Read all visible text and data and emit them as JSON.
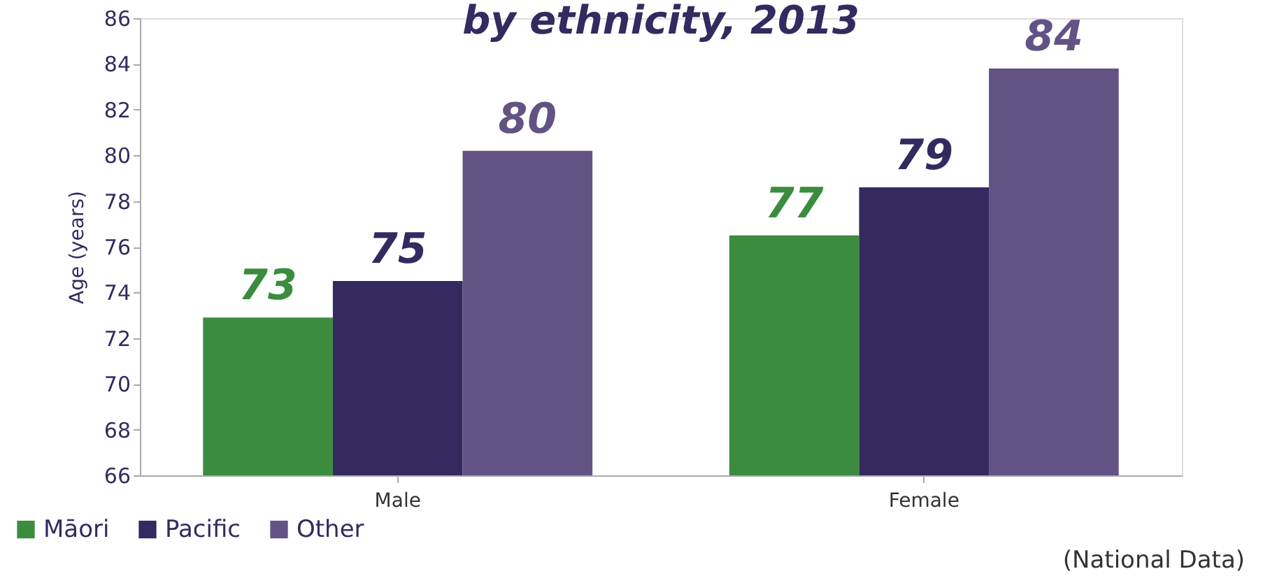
{
  "chart_data": {
    "type": "bar",
    "title": "by ethnicity, 2013",
    "ylabel": "Age (years)",
    "categories": [
      "Male",
      "Female"
    ],
    "series": [
      {
        "name": "Māori",
        "color": "#3b8c3f",
        "values": [
          72.9,
          76.5
        ],
        "value_labels": [
          "73",
          "77"
        ]
      },
      {
        "name": "Pacific",
        "color": "#342a5f",
        "values": [
          74.5,
          78.6
        ],
        "value_labels": [
          "75",
          "79"
        ]
      },
      {
        "name": "Other",
        "color": "#625384",
        "values": [
          80.2,
          83.8
        ],
        "value_labels": [
          "80",
          "84"
        ]
      }
    ],
    "ylim": [
      66,
      86
    ],
    "yticks": [
      66,
      68,
      70,
      72,
      74,
      76,
      78,
      80,
      82,
      84,
      86
    ],
    "grid": false,
    "legend": "bottom left",
    "annotations": [
      "(National Data)"
    ]
  }
}
